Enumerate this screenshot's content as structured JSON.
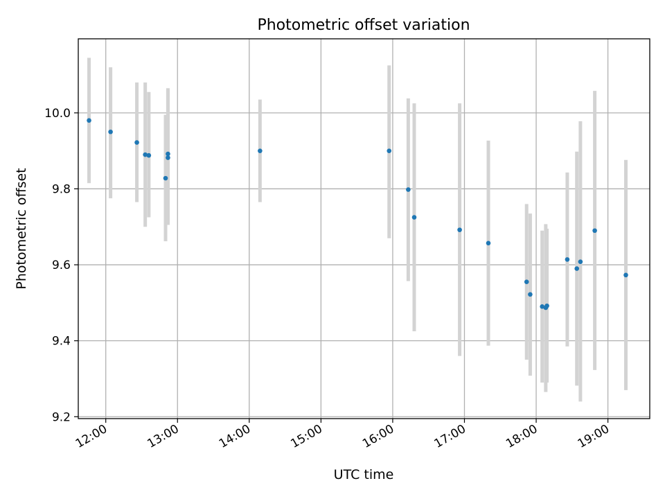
{
  "chart_data": {
    "type": "scatter",
    "title": "Photometric offset variation",
    "xlabel": "UTC time",
    "ylabel": "Photometric offset",
    "xlim": [
      "11:37",
      "19:35"
    ],
    "ylim": [
      9.195,
      10.195
    ],
    "x_ticks": [
      "12:00",
      "13:00",
      "14:00",
      "15:00",
      "16:00",
      "17:00",
      "18:00",
      "19:00"
    ],
    "y_ticks": [
      9.2,
      9.4,
      9.6,
      9.8,
      10.0
    ],
    "y_tick_labels": [
      "9.2",
      "9.4",
      "9.6",
      "9.8",
      "10.0"
    ],
    "grid": true,
    "marker_color": "#1f77b4",
    "errorbar_color": "#d3d3d3",
    "points": [
      {
        "time": "11:46",
        "y": 9.98,
        "low": 9.815,
        "high": 10.145
      },
      {
        "time": "12:04",
        "y": 9.95,
        "low": 9.775,
        "high": 10.12
      },
      {
        "time": "12:26",
        "y": 9.922,
        "low": 9.765,
        "high": 10.08
      },
      {
        "time": "12:33",
        "y": 9.89,
        "low": 9.7,
        "high": 10.08
      },
      {
        "time": "12:36",
        "y": 9.888,
        "low": 9.725,
        "high": 10.055
      },
      {
        "time": "12:50",
        "y": 9.828,
        "low": 9.662,
        "high": 9.995
      },
      {
        "time": "12:52",
        "y": 9.892,
        "low": 9.705,
        "high": 10.065
      },
      {
        "time": "12:52",
        "y": 9.882,
        "low": 9.705,
        "high": 10.06
      },
      {
        "time": "14:09",
        "y": 9.9,
        "low": 9.765,
        "high": 10.035
      },
      {
        "time": "15:57",
        "y": 9.9,
        "low": 9.67,
        "high": 10.125
      },
      {
        "time": "16:13",
        "y": 9.798,
        "low": 9.557,
        "high": 10.038
      },
      {
        "time": "16:18",
        "y": 9.725,
        "low": 9.425,
        "high": 10.025
      },
      {
        "time": "16:56",
        "y": 9.692,
        "low": 9.36,
        "high": 10.025
      },
      {
        "time": "17:20",
        "y": 9.657,
        "low": 9.387,
        "high": 9.927
      },
      {
        "time": "17:52",
        "y": 9.555,
        "low": 9.35,
        "high": 9.76
      },
      {
        "time": "17:55",
        "y": 9.522,
        "low": 9.308,
        "high": 9.735
      },
      {
        "time": "18:05",
        "y": 9.49,
        "low": 9.29,
        "high": 9.69
      },
      {
        "time": "18:08",
        "y": 9.487,
        "low": 9.265,
        "high": 9.707
      },
      {
        "time": "18:09",
        "y": 9.492,
        "low": 9.29,
        "high": 9.695
      },
      {
        "time": "18:26",
        "y": 9.614,
        "low": 9.385,
        "high": 9.843
      },
      {
        "time": "18:34",
        "y": 9.59,
        "low": 9.282,
        "high": 9.898
      },
      {
        "time": "18:37",
        "y": 9.608,
        "low": 9.24,
        "high": 9.978
      },
      {
        "time": "18:49",
        "y": 9.69,
        "low": 9.323,
        "high": 10.058
      },
      {
        "time": "19:15",
        "y": 9.573,
        "low": 9.27,
        "high": 9.876
      }
    ]
  }
}
